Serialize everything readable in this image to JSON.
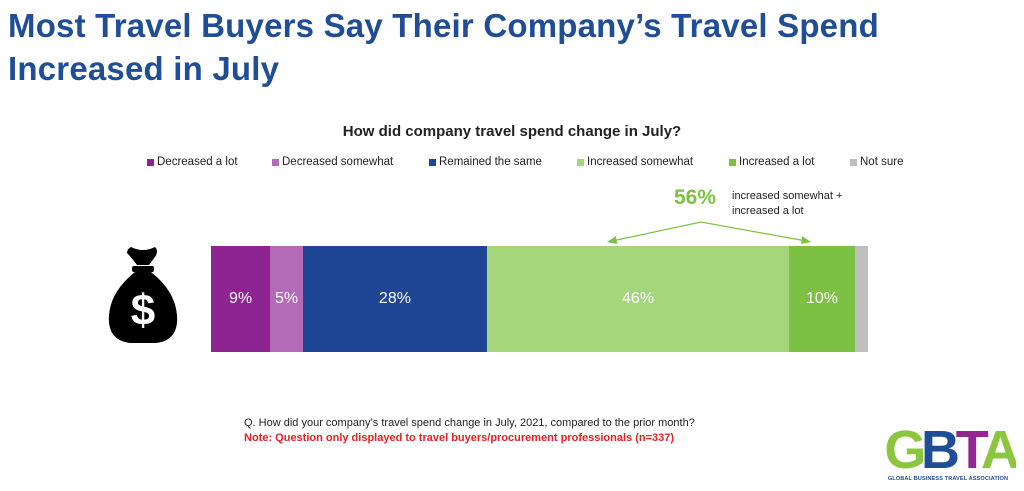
{
  "title": "Most Travel Buyers Say Their Company’s Travel Spend Increased in July",
  "chart_data": {
    "type": "bar",
    "orientation": "horizontal-stacked-100",
    "title": "How did company travel spend change in July?",
    "categories": [
      ""
    ],
    "series": [
      {
        "name": "Decreased a lot",
        "values": [
          9
        ],
        "label": "9%",
        "color": "#8e2491"
      },
      {
        "name": "Decreased somewhat",
        "values": [
          5
        ],
        "label": "5%",
        "color": "#b36ab8"
      },
      {
        "name": "Remained the same",
        "values": [
          28
        ],
        "label": "28%",
        "color": "#1f4694"
      },
      {
        "name": "Increased somewhat",
        "values": [
          46
        ],
        "label": "46%",
        "color": "#a4d67c"
      },
      {
        "name": "Increased a lot",
        "values": [
          10
        ],
        "label": "10%",
        "color": "#7cc143"
      },
      {
        "name": "Not sure",
        "values": [
          2
        ],
        "label": "",
        "color": "#bfbfbf"
      }
    ],
    "legend_placement": "top",
    "annotation": {
      "value": "56%",
      "text": "increased somewhat + increased a lot"
    }
  },
  "icons": {
    "moneybag": "money-bag-icon",
    "logo": "gbta-logo"
  },
  "footer": {
    "question": "Q. How did your company’s travel spend change in July, 2021, compared to the prior month?",
    "note": "Note: Question only displayed to travel buyers/procurement professionals (n=337)"
  },
  "logo": {
    "letters": "GBTA",
    "tagline": "GLOBAL BUSINESS TRAVEL ASSOCIATION"
  },
  "colors": {
    "title": "#1f4e96",
    "note": "#e42222",
    "callout": "#7dc243",
    "logo_green": "#8cc63f",
    "logo_blue": "#1f4e96",
    "logo_purple": "#93278f"
  }
}
